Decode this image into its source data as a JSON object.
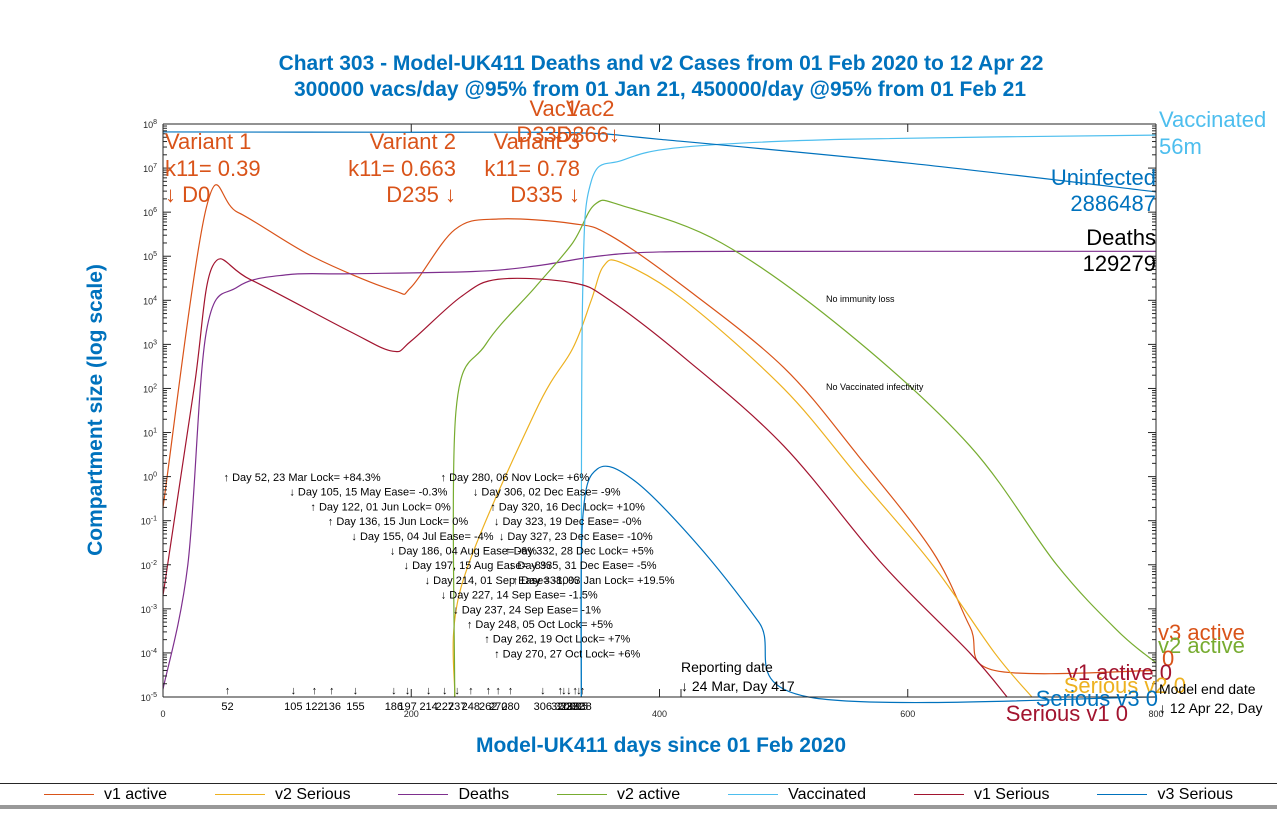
{
  "chart_data": {
    "type": "line",
    "title": "Chart 303 - Model-UK411 Deaths and v2 Cases from 01 Feb 2020 to 12 Apr 22",
    "subtitle": "300000 vacs/day @95% from 01 Jan 21, 450000/day @95% from 01 Feb 21",
    "xlabel": "Model-UK411 days since 01 Feb 2020",
    "ylabel": "Compartment size (log scale)",
    "xlim": [
      0,
      800
    ],
    "ylim": [
      1e-05,
      100000000.0
    ],
    "yscale": "log",
    "x_ticks": [
      "0",
      "200",
      "400",
      "600",
      "800"
    ],
    "y_ticks": [
      {
        "base": "10",
        "exp": "8"
      },
      {
        "base": "10",
        "exp": "7"
      },
      {
        "base": "10",
        "exp": "6"
      },
      {
        "base": "10",
        "exp": "5"
      },
      {
        "base": "10",
        "exp": "4"
      },
      {
        "base": "10",
        "exp": "3"
      },
      {
        "base": "10",
        "exp": "2"
      },
      {
        "base": "10",
        "exp": "1"
      },
      {
        "base": "10",
        "exp": "0"
      },
      {
        "base": "10",
        "exp": "-1"
      },
      {
        "base": "10",
        "exp": "-2"
      },
      {
        "base": "10",
        "exp": "-3"
      },
      {
        "base": "10",
        "exp": "-4"
      },
      {
        "base": "10",
        "exp": "-5"
      }
    ],
    "legend_position": "bottom",
    "series": [
      {
        "name": "v1 active",
        "color": "#D95319",
        "points": [
          [
            0,
            0.2
          ],
          [
            35,
            1300000.0
          ],
          [
            60,
            1000000.0
          ],
          [
            120,
            100000.0
          ],
          [
            185,
            17000.0
          ],
          [
            200,
            20000.0
          ],
          [
            235,
            400000.0
          ],
          [
            270,
            700000.0
          ],
          [
            330,
            550000.0
          ],
          [
            360,
            300000.0
          ],
          [
            420,
            20000.0
          ],
          [
            500,
            300.0
          ],
          [
            560,
            3
          ],
          [
            620,
            0.02
          ],
          [
            650,
            0.0004
          ],
          [
            670,
            4e-05
          ],
          [
            800,
            4e-05
          ]
        ]
      },
      {
        "name": "v2 Serious",
        "color": "#EDB120",
        "points": [
          [
            235,
            1e-05
          ],
          [
            240,
            0.003
          ],
          [
            300,
            30
          ],
          [
            330,
            800
          ],
          [
            345,
            10000.0
          ],
          [
            355,
            60000.0
          ],
          [
            370,
            70000.0
          ],
          [
            420,
            10000.0
          ],
          [
            500,
            100.0
          ],
          [
            560,
            1
          ],
          [
            620,
            0.01
          ],
          [
            670,
            0.0001
          ],
          [
            700,
            1e-05
          ]
        ]
      },
      {
        "name": "Deaths",
        "color": "#7E2F8E",
        "points": [
          [
            0,
            1.5e-05
          ],
          [
            20,
            0.01
          ],
          [
            35,
            2000.0
          ],
          [
            60,
            20000.0
          ],
          [
            100,
            38000.0
          ],
          [
            150,
            40000.0
          ],
          [
            250,
            45000.0
          ],
          [
            300,
            60000.0
          ],
          [
            350,
            100000.0
          ],
          [
            400,
            125000.0
          ],
          [
            500,
            129000.0
          ],
          [
            800,
            129279.0
          ]
        ]
      },
      {
        "name": "v2 active",
        "color": "#77AC30",
        "points": [
          [
            235,
            1e-05
          ],
          [
            236,
            30
          ],
          [
            260,
            1000.0
          ],
          [
            300,
            20000.0
          ],
          [
            330,
            200000.0
          ],
          [
            348,
            1500000.0
          ],
          [
            370,
            1400000.0
          ],
          [
            450,
            200000.0
          ],
          [
            550,
            2000.0
          ],
          [
            650,
            5
          ],
          [
            720,
            0.01
          ],
          [
            770,
            0.0003
          ],
          [
            800,
            6e-05
          ]
        ]
      },
      {
        "name": "Vaccinated",
        "color": "#4DBEEE",
        "points": [
          [
            337,
            1e-05
          ],
          [
            338,
            10000.0
          ],
          [
            345,
            5000000.0
          ],
          [
            370,
            15000000.0
          ],
          [
            420,
            30000000.0
          ],
          [
            550,
            45000000.0
          ],
          [
            800,
            56000000.0
          ]
        ]
      },
      {
        "name": "v1 Serious",
        "color": "#A2142F",
        "points": [
          [
            0,
            0.002
          ],
          [
            25,
            100.0
          ],
          [
            40,
            60000.0
          ],
          [
            70,
            30000.0
          ],
          [
            150,
            2000.0
          ],
          [
            185,
            700
          ],
          [
            200,
            1200.0
          ],
          [
            240,
            12000.0
          ],
          [
            270,
            30000.0
          ],
          [
            330,
            25000.0
          ],
          [
            360,
            10000.0
          ],
          [
            420,
            500.0
          ],
          [
            500,
            5
          ],
          [
            580,
            0.01
          ],
          [
            650,
            0.0001
          ],
          [
            680,
            1e-05
          ]
        ]
      },
      {
        "name": "v3 Serious",
        "color": "#0072BD",
        "points": [
          [
            337,
            1e-05
          ],
          [
            338,
            0.1
          ],
          [
            350,
            1.5
          ],
          [
            380,
            0.8
          ],
          [
            430,
            0.03
          ],
          [
            480,
            0.0005
          ],
          [
            520,
            1e-05
          ],
          [
            800,
            1e-05
          ]
        ]
      },
      {
        "name": "Uninfected",
        "color": "#0072BD",
        "points": [
          [
            0,
            66000000.0
          ],
          [
            200,
            65000000.0
          ],
          [
            335,
            63000000.0
          ],
          [
            400,
            45000000.0
          ],
          [
            600,
            13000000.0
          ],
          [
            800,
            2886487.0
          ]
        ]
      }
    ],
    "variant_labels": [
      {
        "lines": [
          "Variant 1",
          "k11= 0.39",
          "↓ D0"
        ]
      },
      {
        "lines": [
          "Variant 2",
          "k11= 0.663",
          "D235 ↓"
        ]
      },
      {
        "lines": [
          "Variant 3",
          "k11= 0.78",
          "D335 ↓"
        ]
      }
    ],
    "vac_labels": [
      "Vac1",
      "Vac2",
      "D335↓",
      "D366↓"
    ],
    "end_labels": {
      "vaccinated": [
        "Vaccinated",
        "56m"
      ],
      "uninfected": [
        "Uninfected",
        "2886487"
      ],
      "deaths": [
        "Deaths",
        "129279"
      ],
      "v3_active": "v3 active",
      "v2_active": "v2 active",
      "zero": "0",
      "v1_active": "v1 active 0",
      "serious_v2": "Serious v2 0",
      "serious_v3": "Serious v3 0",
      "serious_v1": "Serious v1 0"
    },
    "notes": [
      "No immunity loss",
      "No Vaccinated infectivity"
    ],
    "interventions": [
      {
        "arrow": "↑",
        "text": "Day 52, 23 Mar Lock= +84.3%",
        "day": 52
      },
      {
        "arrow": "↓",
        "text": "Day 105, 15 May Ease= -0.3%",
        "day": 105
      },
      {
        "arrow": "↑",
        "text": "Day 122, 01 Jun Lock= 0%",
        "day": 122
      },
      {
        "arrow": "↑",
        "text": "Day 136, 15 Jun Lock= 0%",
        "day": 136
      },
      {
        "arrow": "↓",
        "text": "Day 155, 04 Jul Ease= -4%",
        "day": 155
      },
      {
        "arrow": "↓",
        "text": "Day 186, 04 Aug Ease= -6%",
        "day": 186
      },
      {
        "arrow": "↓",
        "text": "Day 197, 15 Aug Ease= -8%",
        "day": 197
      },
      {
        "arrow": "↓",
        "text": "Day 214, 01 Sep Ease= -10%",
        "day": 214
      },
      {
        "arrow": "↓",
        "text": "Day 227, 14 Sep Ease= -1.5%",
        "day": 227
      },
      {
        "arrow": "↓",
        "text": "Day 237, 24 Sep Ease= -1%",
        "day": 237
      },
      {
        "arrow": "↑",
        "text": "Day 248, 05 Oct Lock= +5%",
        "day": 248
      },
      {
        "arrow": "↑",
        "text": "Day 262, 19 Oct Lock= +7%",
        "day": 262
      },
      {
        "arrow": "↑",
        "text": "Day 270, 27 Oct Lock= +6%",
        "day": 270
      },
      {
        "arrow": "↑",
        "text": "Day 280, 06 Nov Lock= +6%",
        "day": 280
      },
      {
        "arrow": "↓",
        "text": "Day 306, 02 Dec Ease= -9%",
        "day": 306
      },
      {
        "arrow": "↑",
        "text": "Day 320, 16 Dec Lock= +10%",
        "day": 320
      },
      {
        "arrow": "↓",
        "text": "Day 323, 19 Dec Ease= -0%",
        "day": 323
      },
      {
        "arrow": "↓",
        "text": "Day 327, 23 Dec Ease= -10%",
        "day": 327
      },
      {
        "arrow": "↑",
        "text": "Day 332, 28 Dec Lock= +5%",
        "day": 332
      },
      {
        "arrow": "↓",
        "text": "Day 335, 31 Dec Ease= -5%",
        "day": 335
      },
      {
        "arrow": "↑",
        "text": "Day 338, 03 Jan Lock= +19.5%",
        "day": 338
      }
    ],
    "reporting_date": [
      "Reporting date",
      "↓ 24 Mar, Day 417"
    ],
    "model_end_date": [
      "Model end date",
      "↓ 12 Apr 22, Day"
    ]
  },
  "legend": [
    {
      "label": "v1 active",
      "color": "#D95319"
    },
    {
      "label": "v2 Serious",
      "color": "#EDB120"
    },
    {
      "label": "Deaths",
      "color": "#7E2F8E"
    },
    {
      "label": "v2 active",
      "color": "#77AC30"
    },
    {
      "label": "Vaccinated",
      "color": "#4DBEEE"
    },
    {
      "label": "v1 Serious",
      "color": "#A2142F"
    },
    {
      "label": "v3 Serious",
      "color": "#0072BD"
    }
  ]
}
